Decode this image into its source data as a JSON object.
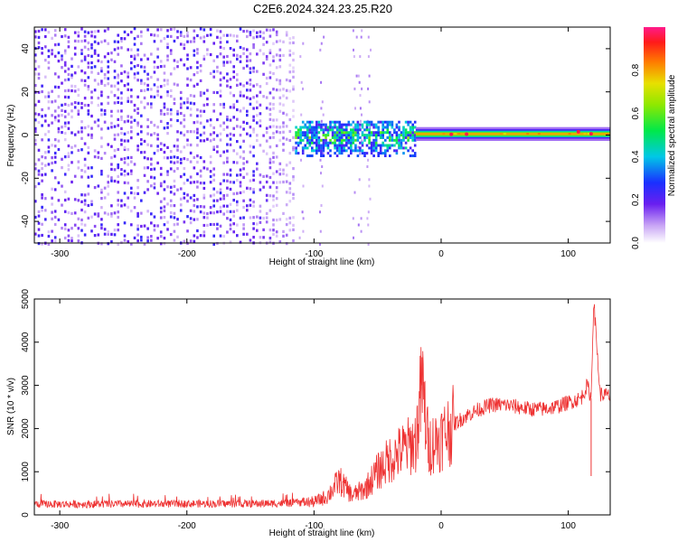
{
  "figure_title": "C2E6.2024.324.23.25.R20",
  "chart_data": [
    {
      "type": "heatmap",
      "xlabel": "Height of straight line (km)",
      "ylabel": "Frequency (Hz)",
      "xlim": [
        -320,
        133
      ],
      "ylim": [
        -50,
        50
      ],
      "xticks": [
        -300,
        -200,
        -100,
        0,
        100
      ],
      "yticks": [
        -40,
        -20,
        0,
        20,
        40
      ],
      "colorbar": {
        "label": "Normalized spectral amplitude",
        "range": [
          0.0,
          1.0
        ],
        "ticks": [
          0.0,
          0.2,
          0.4,
          0.6,
          0.8
        ]
      },
      "regions": [
        {
          "x": [
            -320,
            -115
          ],
          "freq_spread": [
            -50,
            50
          ],
          "amplitude": [
            0.05,
            0.25
          ],
          "description": "diffuse noise"
        },
        {
          "x": [
            -115,
            -20
          ],
          "freq_spread": [
            -8,
            6
          ],
          "amplitude": [
            0.2,
            0.7
          ],
          "description": "emerging signal"
        },
        {
          "x": [
            -20,
            133
          ],
          "freq_center": 0.5,
          "freq_halfwidth": 3,
          "amplitude": [
            0.6,
            0.95
          ],
          "description": "strong narrow line"
        }
      ],
      "peak_points": [
        {
          "x": 8,
          "y": 0.3
        },
        {
          "x": 20,
          "y": 0.4
        },
        {
          "x": 108,
          "y": 1.5
        },
        {
          "x": 118,
          "y": 0.6
        }
      ]
    },
    {
      "type": "line",
      "xlabel": "Height of straight line (km)",
      "ylabel": "SNR (10 * v/v)",
      "xlim": [
        -320,
        133
      ],
      "ylim": [
        0,
        5000
      ],
      "xticks": [
        -300,
        -200,
        -100,
        0,
        100
      ],
      "yticks": [
        0,
        1000,
        2000,
        3000,
        4000,
        5000
      ],
      "series": [
        {
          "color": "#ee3333",
          "x": [
            -320,
            -250,
            -200,
            -150,
            -120,
            -100,
            -90,
            -80,
            -70,
            -60,
            -50,
            -40,
            -30,
            -20,
            -15,
            -10,
            0,
            10,
            20,
            30,
            40,
            50,
            60,
            70,
            80,
            90,
            100,
            110,
            115,
            118,
            120,
            125,
            133
          ],
          "y": [
            250,
            250,
            260,
            260,
            270,
            300,
            420,
            800,
            450,
            600,
            1000,
            1300,
            1500,
            1700,
            3000,
            1600,
            1800,
            2100,
            2300,
            2450,
            2550,
            2550,
            2500,
            2450,
            2450,
            2500,
            2600,
            2700,
            3000,
            2700,
            5000,
            2800,
            2750
          ]
        }
      ],
      "spikes": [
        {
          "x": -15,
          "y": 3650
        },
        {
          "x": 120,
          "y": 5000
        },
        {
          "x": 118,
          "y": 900
        }
      ]
    }
  ]
}
